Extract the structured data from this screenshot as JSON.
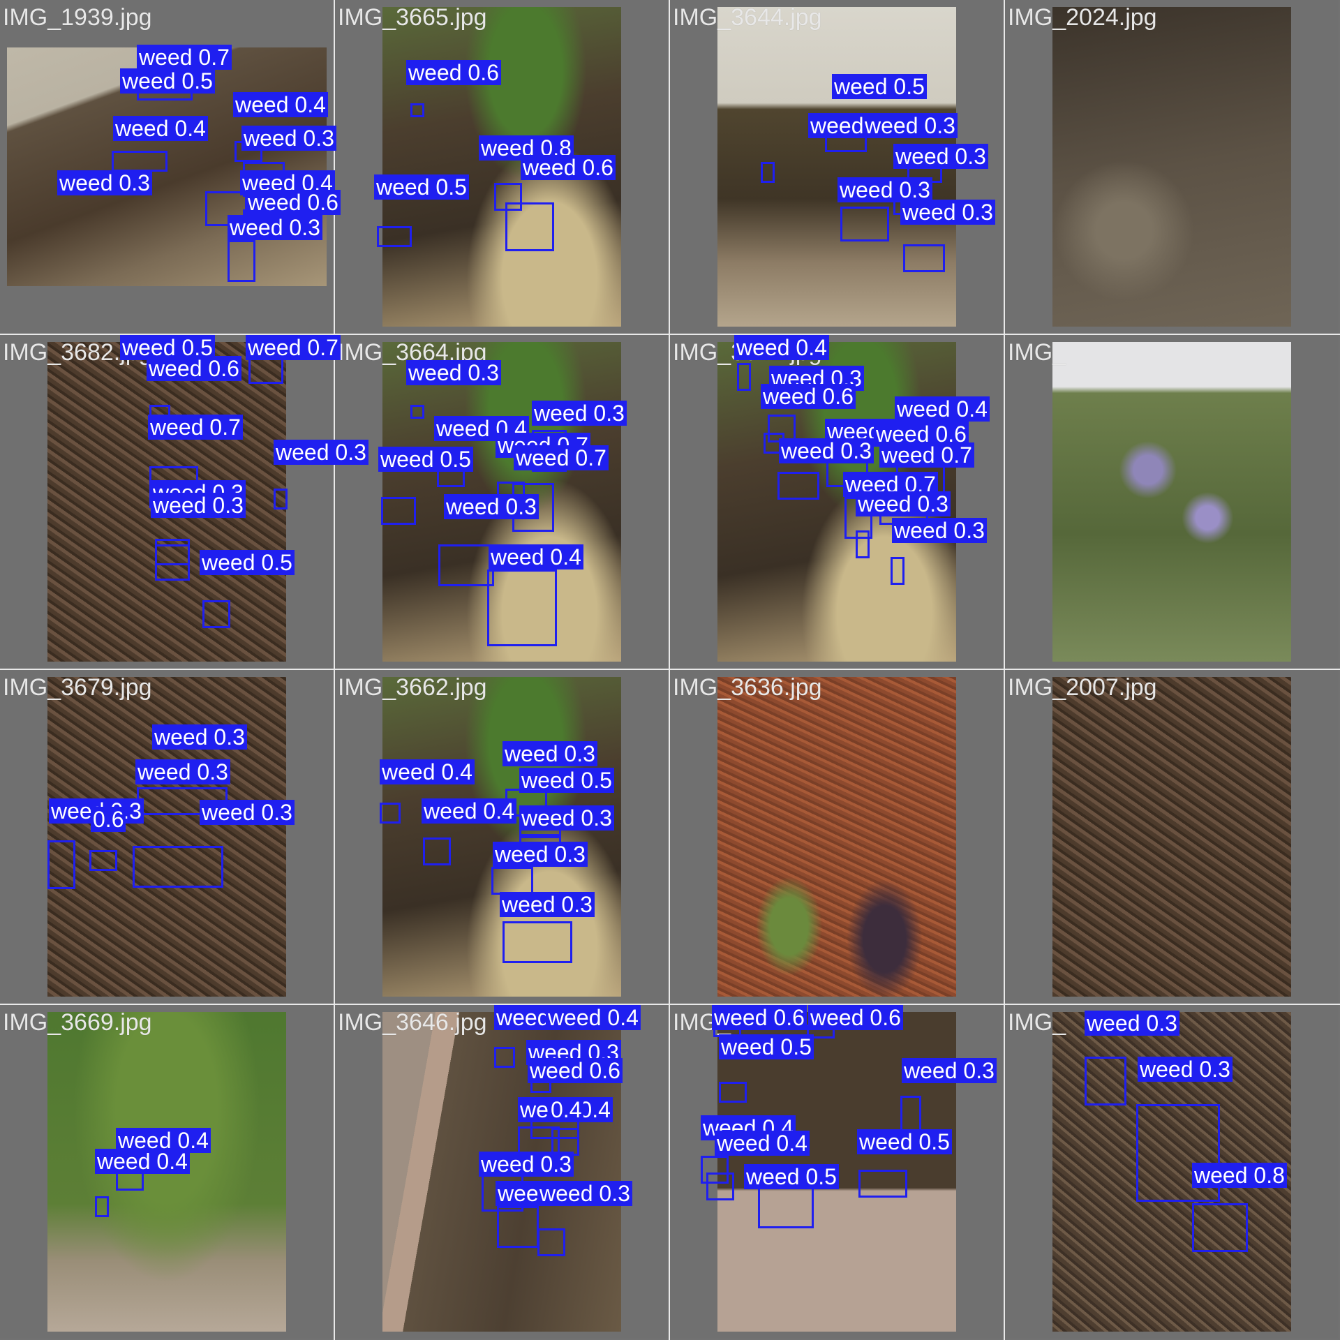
{
  "colors": {
    "background": "#727272",
    "box": "#1f1ff0",
    "label_text": "#ffffff",
    "filename_text": "#e8e8e8"
  },
  "cells": [
    {
      "file": "IMG_1939.jpg",
      "scene": "soil",
      "detections": [
        {
          "label": "weed 0.7"
        },
        {
          "label": "weed 0.5"
        },
        {
          "label": "weed 0.4"
        },
        {
          "label": "weed 0.4"
        },
        {
          "label": "weed 0.3"
        },
        {
          "label": "weed 0.3"
        },
        {
          "label": "weed 0.4"
        },
        {
          "label": "weed 0.6"
        },
        {
          "label": "weed 0.3"
        }
      ]
    },
    {
      "file": "IMG_3665.jpg",
      "scene": "garden",
      "detections": [
        {
          "label": "weed 0.6"
        },
        {
          "label": "weed 0.8"
        },
        {
          "label": "weed 0.6"
        },
        {
          "label": "weed 0.5"
        }
      ]
    },
    {
      "file": "IMG_3644.jpg",
      "scene": "siding",
      "detections": [
        {
          "label": "weed 0.5"
        },
        {
          "label": "weed 0.3"
        },
        {
          "label": "weed 0.3"
        },
        {
          "label": "weed 0.3"
        },
        {
          "label": "weed 0.3"
        },
        {
          "label": "weed 0.3"
        }
      ]
    },
    {
      "file": "IMG_2024.jpg",
      "scene": "dirt",
      "detections": []
    },
    {
      "file": "IMG_3682.jpg",
      "scene": "mulch",
      "detections": [
        {
          "label": "weed 0.5"
        },
        {
          "label": "weed 0.7"
        },
        {
          "label": "weed 0.6"
        },
        {
          "label": "weed 0.7"
        },
        {
          "label": "weed 0.3"
        },
        {
          "label": "weed 0.3"
        },
        {
          "label": "weed 0.3"
        },
        {
          "label": "weed 0.5"
        }
      ]
    },
    {
      "file": "IMG_3664.jpg",
      "scene": "garden",
      "detections": [
        {
          "label": "weed 0.3"
        },
        {
          "label": "weed 0.3"
        },
        {
          "label": "weed 0.4"
        },
        {
          "label": "weed 0.7"
        },
        {
          "label": "weed 0.5"
        },
        {
          "label": "weed 0.7"
        },
        {
          "label": "weed 0.3"
        },
        {
          "label": "weed 0.4"
        }
      ]
    },
    {
      "file": "IMG_3641.jpg",
      "scene": "garden",
      "detections": [
        {
          "label": "weed 0.4"
        },
        {
          "label": "weed 0.3"
        },
        {
          "label": "weed 0.6"
        },
        {
          "label": "weed 0.4"
        },
        {
          "label": "weed 0.3"
        },
        {
          "label": "weed 0.6"
        },
        {
          "label": "weed 0.3"
        },
        {
          "label": "weed 0.7"
        },
        {
          "label": "weed 0.7"
        },
        {
          "label": "weed 0.3"
        },
        {
          "label": "weed 0.3"
        }
      ]
    },
    {
      "file": "IMG_",
      "scene": "lavender",
      "detections": []
    },
    {
      "file": "IMG_3679.jpg",
      "scene": "mulch",
      "detections": [
        {
          "label": "weed 0.3"
        },
        {
          "label": "weed 0.3"
        },
        {
          "label": "weed 0.3"
        },
        {
          "label": "0.6"
        },
        {
          "label": "weed 0.3"
        }
      ]
    },
    {
      "file": "IMG_3662.jpg",
      "scene": "garden",
      "detections": [
        {
          "label": "weed 0.4"
        },
        {
          "label": "weed 0.3"
        },
        {
          "label": "weed 0.5"
        },
        {
          "label": "weed 0.4"
        },
        {
          "label": "weed 0.3"
        },
        {
          "label": "weed 0.3"
        },
        {
          "label": "weed 0.3"
        }
      ]
    },
    {
      "file": "IMG_3636.jpg",
      "scene": "redmulch",
      "detections": []
    },
    {
      "file": "IMG_2007.jpg",
      "scene": "mulch",
      "detections": []
    },
    {
      "file": "IMG_3669.jpg",
      "scene": "plants",
      "detections": [
        {
          "label": "weed 0.4"
        },
        {
          "label": "weed 0.4"
        }
      ]
    },
    {
      "file": "IMG_3646.jpg",
      "scene": "border",
      "detections": [
        {
          "label": "weed 0.3"
        },
        {
          "label": "weed 0.4"
        },
        {
          "label": "weed 0.3"
        },
        {
          "label": "weed 0.6"
        },
        {
          "label": "weed 0.4"
        },
        {
          "label": "0.4"
        },
        {
          "label": "weed 0.3"
        },
        {
          "label": "weed 0.3"
        },
        {
          "label": "weed 0.3"
        }
      ]
    },
    {
      "file": "IMG_",
      "scene": "border2",
      "detections": [
        {
          "label": "weed 0.6"
        },
        {
          "label": "weed 0.6"
        },
        {
          "label": "weed 0.5"
        },
        {
          "label": "weed 0.3"
        },
        {
          "label": "weed 0.4"
        },
        {
          "label": "weed 0.4"
        },
        {
          "label": "weed 0.5"
        },
        {
          "label": "weed 0.5"
        }
      ]
    },
    {
      "file": "IMG_",
      "scene": "clover",
      "detections": [
        {
          "label": "weed 0.3"
        },
        {
          "label": "weed 0.3"
        },
        {
          "label": "weed 0.8"
        }
      ]
    }
  ]
}
